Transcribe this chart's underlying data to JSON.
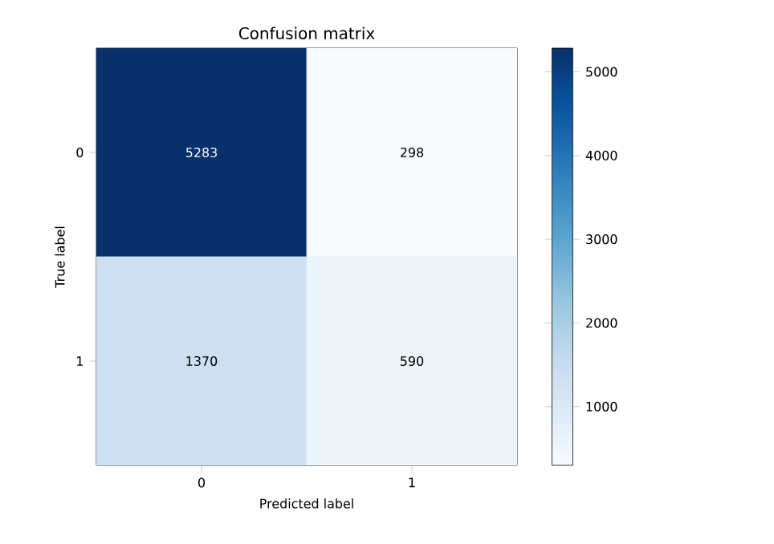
{
  "chart_data": {
    "type": "heatmap",
    "title": "Confusion matrix",
    "xlabel": "Predicted label",
    "ylabel": "True label",
    "categories": [
      "0",
      "1"
    ],
    "y_categories": [
      "0",
      "1"
    ],
    "cells": [
      [
        5283,
        298
      ],
      [
        1370,
        590
      ]
    ],
    "clim": [
      298,
      5283
    ],
    "cticks": [
      1000,
      2000,
      3000,
      4000,
      5000
    ],
    "data_labels": true
  }
}
